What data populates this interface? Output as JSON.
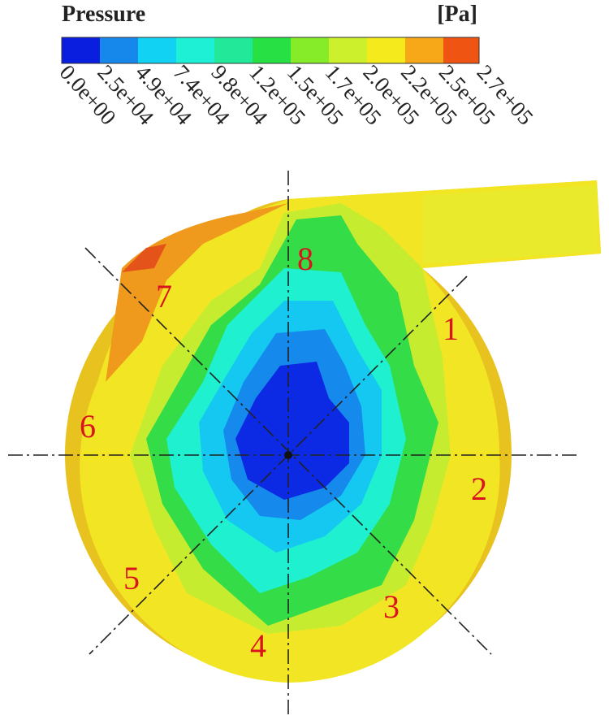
{
  "legend": {
    "title": "Pressure",
    "unit": "[Pa]",
    "ticks": [
      "0.0e+00",
      "2.5e+04",
      "4.9e+04",
      "7.4e+04",
      "9.8e+04",
      "1.2e+05",
      "1.5e+05",
      "1.7e+05",
      "2.0e+05",
      "2.2e+05",
      "2.5e+05",
      "2.7e+05"
    ]
  },
  "labels": [
    "1",
    "2",
    "3",
    "4",
    "5",
    "6",
    "7",
    "8"
  ]
}
